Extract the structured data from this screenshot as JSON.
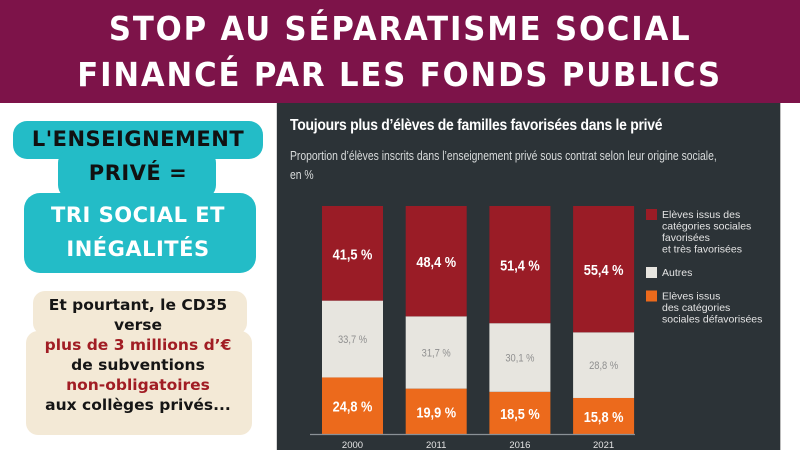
{
  "banner": {
    "line1": "STOP AU SÉPARATISME SOCIAL",
    "line2": "FINANCÉ PAR LES FONDS PUBLICS",
    "background": "#7d1349"
  },
  "callout": {
    "line1": "L'ENSEIGNEMENT",
    "line2": "PRIVÉ =",
    "line3": "TRI SOCIAL  ET",
    "line4": "INÉGALITÉS",
    "background": "#23bcc7"
  },
  "note": {
    "line1": "Et pourtant, le CD35",
    "line2": "verse",
    "line3": "plus de 3 millions d’€",
    "line4": "de subventions",
    "line5": "non-obligatoires",
    "line6": "aux collèges privés...",
    "background": "#f3e9d6",
    "highlight_color": "#a11d24"
  },
  "chart_data": {
    "type": "bar",
    "stacked": true,
    "title": "Toujours plus d’élèves de familles favorisées dans le privé",
    "subtitle": "Proportion d’élèves inscrits dans l’enseignement privé sous contrat selon leur origine sociale, en %",
    "xlabel": "",
    "ylabel": "",
    "ylim": [
      0,
      100
    ],
    "grid": false,
    "legend_position": "right",
    "categories": [
      "2000",
      "2011",
      "2016",
      "2021"
    ],
    "series": [
      {
        "name": "Elèves issus des catégories sociales défavorisées",
        "legend_lines": [
          "Elèves issus",
          "des catégories",
          "sociales défavorisées"
        ],
        "color": "#ec6a1c",
        "label_color": "#ffffff",
        "values": [
          24.8,
          19.9,
          18.5,
          15.8
        ],
        "labels": [
          "24,8 %",
          "19,9 %",
          "18,5 %",
          "15,8 %"
        ]
      },
      {
        "name": "Autres",
        "legend_lines": [
          "Autres"
        ],
        "color": "#e7e5df",
        "label_color": "#8f8f8f",
        "values": [
          33.7,
          31.7,
          30.1,
          28.8
        ],
        "labels": [
          "33,7 %",
          "31,7 %",
          "30,1 %",
          "28,8 %"
        ]
      },
      {
        "name": "Elèves issus des catégories sociales favorisées et très favorisées",
        "legend_lines": [
          "Elèves issus des",
          "catégories sociales",
          "favorisées",
          "et très favorisées"
        ],
        "color": "#9a1c26",
        "label_color": "#ffffff",
        "values": [
          41.5,
          48.4,
          51.4,
          55.4
        ],
        "labels": [
          "41,5 %",
          "48,4 %",
          "51,4 %",
          "55,4 %"
        ]
      }
    ],
    "legend_order": [
      2,
      1,
      0
    ]
  }
}
